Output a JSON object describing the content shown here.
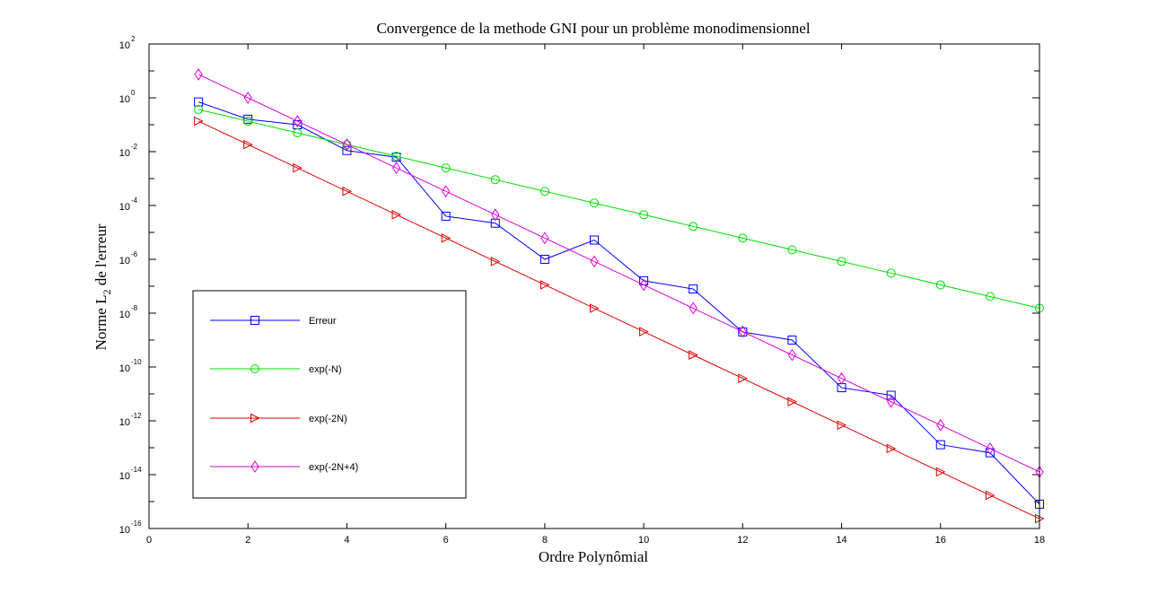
{
  "chart_data": {
    "type": "line",
    "title": "Convergence de la methode GNI pour un problème monodimensionnel",
    "xlabel": "Ordre Polynômial",
    "ylabel": {
      "main": "Norme L",
      "sub": "2",
      "rest": " de l'erreur"
    },
    "xlim": [
      0,
      18
    ],
    "ylim": [
      1e-16,
      100
    ],
    "yscale": "log",
    "grid": false,
    "legend_position": "bottom-left",
    "x_ticks": [
      0,
      2,
      4,
      6,
      8,
      10,
      12,
      14,
      16,
      18
    ],
    "y_ticks": [
      {
        "base": "10",
        "exp": "2",
        "value": 100
      },
      {
        "base": "10",
        "exp": "0",
        "value": 1
      },
      {
        "base": "10",
        "exp": "-2",
        "value": 0.01
      },
      {
        "base": "10",
        "exp": "-4",
        "value": 0.0001
      },
      {
        "base": "10",
        "exp": "-6",
        "value": 1e-06
      },
      {
        "base": "10",
        "exp": "-8",
        "value": 1e-08
      },
      {
        "base": "10",
        "exp": "-10",
        "value": 1e-10
      },
      {
        "base": "10",
        "exp": "-12",
        "value": 1e-12
      },
      {
        "base": "10",
        "exp": "-14",
        "value": 1e-14
      },
      {
        "base": "10",
        "exp": "-16",
        "value": 1e-16
      }
    ],
    "x": [
      1,
      2,
      3,
      4,
      5,
      6,
      7,
      8,
      9,
      10,
      11,
      12,
      13,
      14,
      15,
      16,
      17,
      18
    ],
    "series": [
      {
        "name": "Erreur",
        "color": "#0000ff",
        "marker": "square",
        "values": [
          0.7,
          0.16,
          0.1,
          0.011,
          0.0062,
          4e-05,
          2.2e-05,
          1e-06,
          5.2e-06,
          1.6e-07,
          7.9e-08,
          2e-09,
          1e-09,
          1.7e-11,
          8.9e-12,
          1.3e-13,
          6.5e-14,
          8e-16
        ]
      },
      {
        "name": "exp(-N)",
        "color": "#00dd00",
        "marker": "circle",
        "values": [
          0.3679,
          0.1353,
          0.04979,
          0.01832,
          0.006738,
          0.002479,
          0.000912,
          0.0003355,
          0.0001234,
          4.54e-05,
          1.67e-05,
          6.144e-06,
          2.26e-06,
          8.315e-07,
          3.059e-07,
          1.125e-07,
          4.14e-08,
          1.523e-08
        ]
      },
      {
        "name": "exp(-2N)",
        "color": "#dd0000",
        "marker": "triangle-right",
        "values": [
          0.1353,
          0.01832,
          0.002479,
          0.0003355,
          4.54e-05,
          6.144e-06,
          8.315e-07,
          1.125e-07,
          1.523e-08,
          2.061e-09,
          2.79e-10,
          3.775e-11,
          5.109e-12,
          6.914e-13,
          9.358e-14,
          1.266e-14,
          1.714e-15,
          2.32e-16
        ]
      },
      {
        "name": "exp(-2N+4)",
        "color": "#dd00dd",
        "marker": "diamond",
        "values": [
          7.389,
          1,
          0.1353,
          0.01832,
          0.002479,
          0.0003355,
          4.54e-05,
          6.144e-06,
          8.315e-07,
          1.125e-07,
          1.523e-08,
          2.061e-09,
          2.79e-10,
          3.775e-11,
          5.109e-12,
          6.914e-13,
          9.358e-14,
          1.266e-14
        ]
      }
    ]
  }
}
